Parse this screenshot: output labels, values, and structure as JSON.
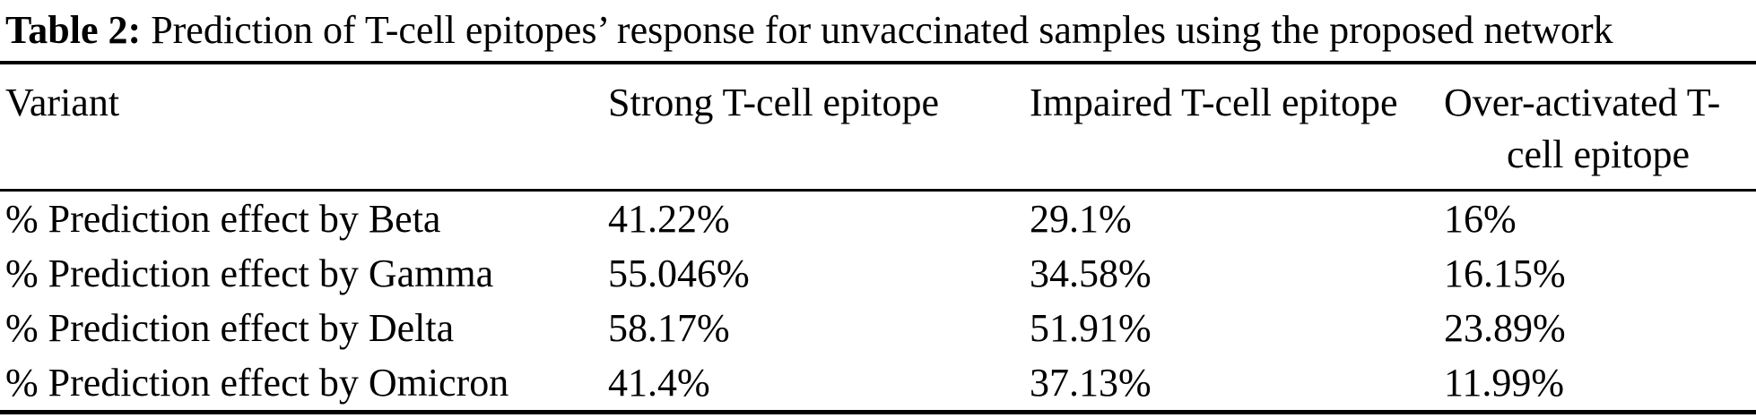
{
  "caption": {
    "label": "Table 2:",
    "text": "Prediction of T-cell epitopes’ response for unvaccinated samples using the proposed network"
  },
  "table": {
    "columns": [
      "Variant",
      "Strong T-cell epitope",
      "Impaired T-cell epitope",
      "Over-activated T-cell epitope"
    ],
    "rows": [
      [
        "% Prediction effect by Beta",
        "41.22%",
        "29.1%",
        "16%"
      ],
      [
        "% Prediction effect by Gamma",
        "55.046%",
        "34.58%",
        "16.15%"
      ],
      [
        "% Prediction effect by Delta",
        "58.17%",
        "51.91%",
        "23.89%"
      ],
      [
        "% Prediction effect by Omicron",
        "41.4%",
        "37.13%",
        "11.99%"
      ]
    ]
  },
  "chart_data": {
    "type": "table",
    "title": "Table 2: Prediction of T-cell epitopes’ response for unvaccinated samples using the proposed network",
    "columns": [
      "Variant",
      "Strong T-cell epitope",
      "Impaired T-cell epitope",
      "Over-activated T-cell epitope"
    ],
    "rows": [
      {
        "variant": "% Prediction effect by Beta",
        "strong_pct": 41.22,
        "impaired_pct": 29.1,
        "over_activated_pct": 16
      },
      {
        "variant": "% Prediction effect by Gamma",
        "strong_pct": 55.046,
        "impaired_pct": 34.58,
        "over_activated_pct": 16.15
      },
      {
        "variant": "% Prediction effect by Delta",
        "strong_pct": 58.17,
        "impaired_pct": 51.91,
        "over_activated_pct": 23.89
      },
      {
        "variant": "% Prediction effect by Omicron",
        "strong_pct": 41.4,
        "impaired_pct": 37.13,
        "over_activated_pct": 11.99
      }
    ]
  },
  "colors": {
    "text": "#000000",
    "background": "#ffffff"
  }
}
